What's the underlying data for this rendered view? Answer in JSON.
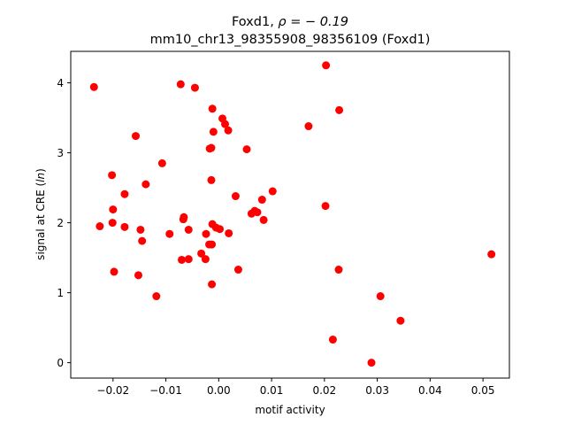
{
  "chart_data": {
    "type": "scatter",
    "title_line1_prefix": "Foxd1, ",
    "title_line1_rho": "ρ = − 0.19",
    "title_line2": "mm10_chr13_98355908_98356109 (Foxd1)",
    "xlabel": "motif activity",
    "ylabel_prefix": "signal at CRE (",
    "ylabel_ln": "ln",
    "ylabel_suffix": ")",
    "xlim": [
      -0.028,
      0.055
    ],
    "ylim": [
      -0.22,
      4.45
    ],
    "xticks": [
      -0.02,
      -0.01,
      0.0,
      0.01,
      0.02,
      0.03,
      0.04,
      0.05
    ],
    "xtick_labels": [
      "−0.02",
      "−0.01",
      "0.00",
      "0.01",
      "0.02",
      "0.03",
      "0.04",
      "0.05"
    ],
    "yticks": [
      0,
      1,
      2,
      3,
      4
    ],
    "ytick_labels": [
      "0",
      "1",
      "2",
      "3",
      "4"
    ],
    "marker_color": "#ff0000",
    "grid": false,
    "points": [
      {
        "x": -0.0236,
        "y": 3.94
      },
      {
        "x": -0.0072,
        "y": 3.98
      },
      {
        "x": -0.0045,
        "y": 3.93
      },
      {
        "x": 0.0203,
        "y": 4.25
      },
      {
        "x": -0.0012,
        "y": 3.63
      },
      {
        "x": 0.0228,
        "y": 3.61
      },
      {
        "x": 0.0007,
        "y": 3.49
      },
      {
        "x": 0.0012,
        "y": 3.41
      },
      {
        "x": -0.001,
        "y": 3.3
      },
      {
        "x": 0.0018,
        "y": 3.32
      },
      {
        "x": 0.017,
        "y": 3.38
      },
      {
        "x": -0.0157,
        "y": 3.24
      },
      {
        "x": -0.0017,
        "y": 3.06
      },
      {
        "x": -0.0014,
        "y": 3.07
      },
      {
        "x": 0.0053,
        "y": 3.05
      },
      {
        "x": -0.0107,
        "y": 2.85
      },
      {
        "x": -0.0202,
        "y": 2.68
      },
      {
        "x": -0.0014,
        "y": 2.61
      },
      {
        "x": -0.0138,
        "y": 2.55
      },
      {
        "x": -0.0178,
        "y": 2.41
      },
      {
        "x": 0.0032,
        "y": 2.38
      },
      {
        "x": 0.0102,
        "y": 2.45
      },
      {
        "x": 0.0082,
        "y": 2.33
      },
      {
        "x": 0.0202,
        "y": 2.24
      },
      {
        "x": -0.02,
        "y": 2.19
      },
      {
        "x": 0.0062,
        "y": 2.13
      },
      {
        "x": 0.0068,
        "y": 2.17
      },
      {
        "x": 0.0073,
        "y": 2.15
      },
      {
        "x": -0.0066,
        "y": 2.08
      },
      {
        "x": -0.0067,
        "y": 2.05
      },
      {
        "x": 0.0085,
        "y": 2.04
      },
      {
        "x": -0.0201,
        "y": 2.0
      },
      {
        "x": -0.0012,
        "y": 1.98
      },
      {
        "x": -0.0225,
        "y": 1.95
      },
      {
        "x": -0.0178,
        "y": 1.94
      },
      {
        "x": 0.0002,
        "y": 1.91
      },
      {
        "x": -0.0005,
        "y": 1.93
      },
      {
        "x": -0.0148,
        "y": 1.9
      },
      {
        "x": -0.0057,
        "y": 1.9
      },
      {
        "x": -0.0093,
        "y": 1.84
      },
      {
        "x": -0.0024,
        "y": 1.84
      },
      {
        "x": 0.0019,
        "y": 1.85
      },
      {
        "x": -0.0145,
        "y": 1.74
      },
      {
        "x": -0.0018,
        "y": 1.69
      },
      {
        "x": -0.0013,
        "y": 1.69
      },
      {
        "x": -0.0033,
        "y": 1.56
      },
      {
        "x": -0.007,
        "y": 1.47
      },
      {
        "x": -0.0057,
        "y": 1.48
      },
      {
        "x": -0.0025,
        "y": 1.48
      },
      {
        "x": 0.0516,
        "y": 1.55
      },
      {
        "x": -0.0198,
        "y": 1.3
      },
      {
        "x": 0.0037,
        "y": 1.33
      },
      {
        "x": 0.0227,
        "y": 1.33
      },
      {
        "x": -0.0152,
        "y": 1.25
      },
      {
        "x": -0.0013,
        "y": 1.12
      },
      {
        "x": -0.0118,
        "y": 0.95
      },
      {
        "x": 0.0306,
        "y": 0.95
      },
      {
        "x": 0.0344,
        "y": 0.6
      },
      {
        "x": 0.0216,
        "y": 0.33
      },
      {
        "x": 0.0289,
        "y": 0.0
      }
    ]
  }
}
